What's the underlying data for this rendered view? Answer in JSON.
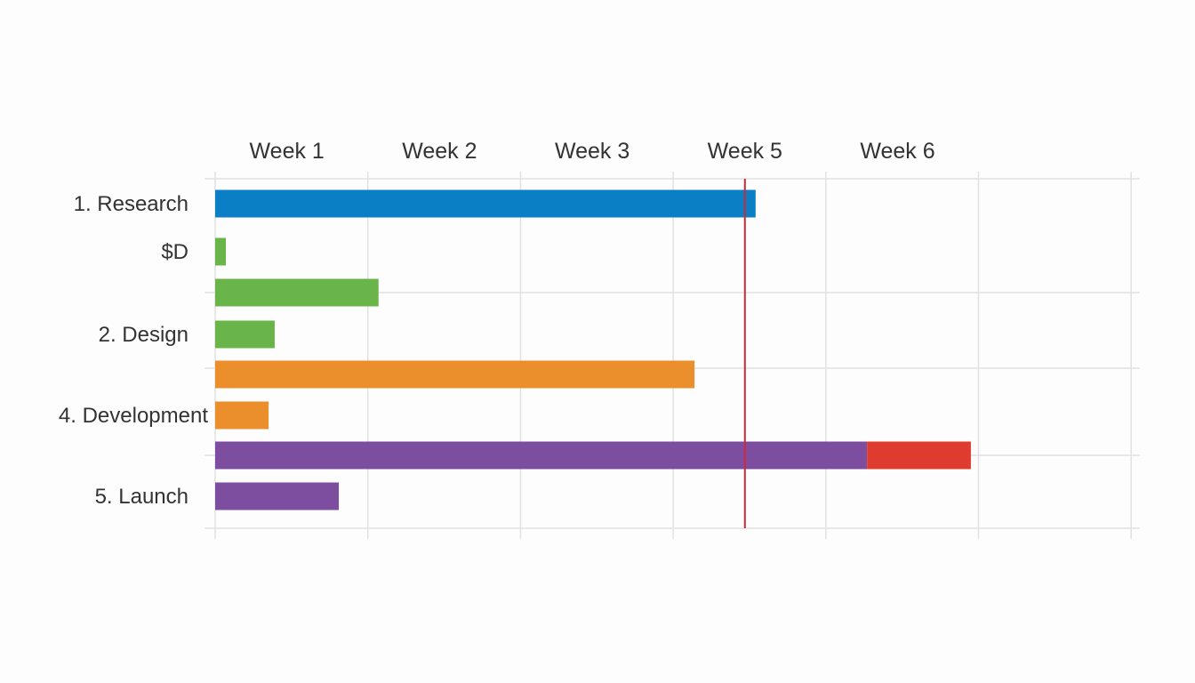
{
  "chart_data": {
    "type": "gantt",
    "title": "",
    "week_labels": [
      "Week 1",
      "Week 2",
      "Week 3",
      "Week 5",
      "Week 6"
    ],
    "x_range_weeks": [
      0,
      6
    ],
    "grid": true,
    "today_marker_week": 3.47,
    "today_marker_color": "#cc2a36",
    "row_labels": [
      "1. Research",
      "$D",
      "",
      "2. Design",
      "",
      "4. Development",
      "",
      "5. Launch"
    ],
    "bars": [
      {
        "row": 0,
        "start": 0,
        "end": 3.54,
        "color": "#0a7fc6"
      },
      {
        "row": 1,
        "start": 0,
        "end": 0.07,
        "color": "#6ab54a"
      },
      {
        "row": 2,
        "start": 0,
        "end": 1.07,
        "color": "#6ab54a"
      },
      {
        "row": 3,
        "start": 0,
        "end": 0.39,
        "color": "#6ab54a"
      },
      {
        "row": 4,
        "start": 0,
        "end": 3.14,
        "color": "#ea8f2c"
      },
      {
        "row": 5,
        "start": 0,
        "end": 0.35,
        "color": "#ea8f2c"
      },
      {
        "row": 6,
        "start": 0,
        "end": 4.27,
        "color": "#7d4e9f"
      },
      {
        "row": 6,
        "start": 4.27,
        "end": 4.95,
        "color": "#e03b2f"
      },
      {
        "row": 7,
        "start": 0,
        "end": 0.81,
        "color": "#7d4e9f"
      }
    ]
  }
}
